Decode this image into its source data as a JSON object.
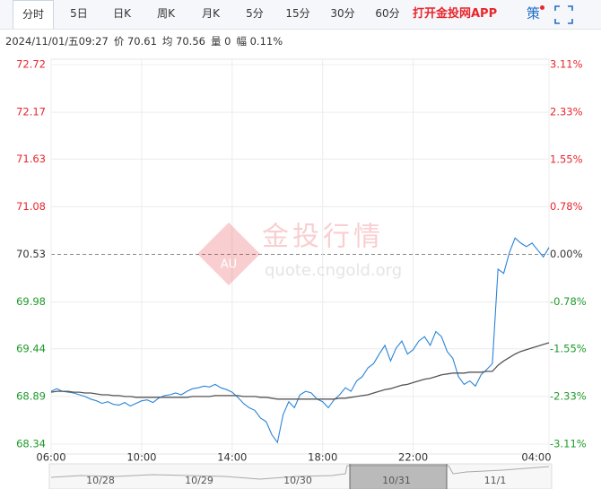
{
  "toolbar": {
    "tabs": [
      "分时",
      "5日",
      "日K",
      "周K",
      "月K",
      "5分",
      "15分",
      "30分",
      "60分"
    ],
    "app_link": "打开金投网APP",
    "strategy": "策"
  },
  "info": {
    "datetime": "2024/11/01/五09:27",
    "price": "价 70.61",
    "average": "均 70.56",
    "volume": "量 0",
    "change": "幅 0.11%"
  },
  "watermark": {
    "title": "金投行情",
    "site": "quote.cngold.org",
    "badge": "AU"
  },
  "navigator": {
    "dates": [
      "10/28",
      "10/29",
      "10/30",
      "10/31",
      "11/1"
    ]
  },
  "chart_data": {
    "type": "line",
    "categories": [
      "06:00",
      "06:15",
      "06:30",
      "06:45",
      "07:00",
      "07:15",
      "07:30",
      "07:45",
      "08:00",
      "08:15",
      "08:30",
      "08:45",
      "09:00",
      "09:15",
      "09:30",
      "09:45",
      "10:00",
      "10:15",
      "10:30",
      "10:45",
      "11:00",
      "11:15",
      "11:30",
      "11:45",
      "12:00",
      "12:15",
      "12:30",
      "12:45",
      "13:00",
      "13:15",
      "13:30",
      "13:45",
      "14:00",
      "14:15",
      "14:30",
      "14:45",
      "15:00",
      "15:15",
      "15:30",
      "15:45",
      "16:00",
      "16:15",
      "16:30",
      "16:45",
      "17:00",
      "17:15",
      "17:30",
      "17:45",
      "18:00",
      "18:15",
      "18:30",
      "18:45",
      "19:00",
      "19:15",
      "19:30",
      "19:45",
      "20:00",
      "20:15",
      "20:30",
      "20:45",
      "21:00",
      "21:15",
      "21:30",
      "21:45",
      "22:00",
      "22:15",
      "22:30",
      "22:45",
      "23:00",
      "23:15",
      "23:30",
      "23:45",
      "00:00",
      "00:15",
      "00:30",
      "00:45",
      "01:00",
      "01:15",
      "01:30",
      "01:45",
      "02:00",
      "02:15",
      "02:30",
      "02:45",
      "03:00",
      "03:15",
      "03:30",
      "03:45",
      "04:00"
    ],
    "series": [
      {
        "color": "#2a84d8",
        "values": [
          68.95,
          68.98,
          68.95,
          68.94,
          68.93,
          68.91,
          68.89,
          68.86,
          68.84,
          68.81,
          68.83,
          68.8,
          68.79,
          68.82,
          68.78,
          68.81,
          68.84,
          68.85,
          68.82,
          68.87,
          68.9,
          68.91,
          68.93,
          68.91,
          68.95,
          68.98,
          68.99,
          69.01,
          69.0,
          69.03,
          68.99,
          68.97,
          68.94,
          68.88,
          68.81,
          68.76,
          68.73,
          68.64,
          68.6,
          68.45,
          68.36,
          68.68,
          68.83,
          68.76,
          68.91,
          68.95,
          68.93,
          68.86,
          68.83,
          68.76,
          68.85,
          68.91,
          68.99,
          68.95,
          69.07,
          69.12,
          69.22,
          69.27,
          69.38,
          69.48,
          69.3,
          69.45,
          69.53,
          69.38,
          69.43,
          69.53,
          69.58,
          69.48,
          69.64,
          69.58,
          69.41,
          69.33,
          69.12,
          69.03,
          69.07,
          69.01,
          69.14,
          69.2,
          69.27,
          70.36,
          70.31,
          70.55,
          70.72,
          70.66,
          70.62,
          70.66,
          70.58,
          70.5,
          70.61
        ]
      },
      {
        "color": "#555555",
        "values": [
          68.94,
          68.95,
          68.95,
          68.95,
          68.94,
          68.94,
          68.93,
          68.93,
          68.92,
          68.91,
          68.91,
          68.9,
          68.9,
          68.89,
          68.89,
          68.88,
          68.88,
          68.88,
          68.88,
          68.88,
          68.88,
          68.88,
          68.88,
          68.88,
          68.88,
          68.89,
          68.89,
          68.89,
          68.89,
          68.9,
          68.9,
          68.9,
          68.9,
          68.9,
          68.89,
          68.89,
          68.89,
          68.88,
          68.88,
          68.87,
          68.86,
          68.86,
          68.86,
          68.86,
          68.86,
          68.86,
          68.86,
          68.86,
          68.86,
          68.86,
          68.86,
          68.87,
          68.87,
          68.88,
          68.89,
          68.9,
          68.91,
          68.93,
          68.95,
          68.97,
          68.98,
          69.0,
          69.02,
          69.03,
          69.05,
          69.07,
          69.09,
          69.1,
          69.12,
          69.14,
          69.15,
          69.16,
          69.16,
          69.16,
          69.17,
          69.17,
          69.17,
          69.18,
          69.18,
          69.25,
          69.3,
          69.34,
          69.38,
          69.41,
          69.43,
          69.45,
          69.47,
          69.49,
          69.51
        ]
      }
    ],
    "ylim": [
      68.34,
      72.72
    ],
    "yticks": [
      68.34,
      68.89,
      69.44,
      69.98,
      70.53,
      71.08,
      71.63,
      72.17,
      72.72
    ],
    "y2lim": [
      -3.11,
      3.11
    ],
    "y2ticks": [
      {
        "value": -3.11,
        "label": "-3.11%"
      },
      {
        "value": -2.33,
        "label": "-2.33%"
      },
      {
        "value": -1.55,
        "label": "-1.55%"
      },
      {
        "value": -0.78,
        "label": "-0.78%"
      },
      {
        "value": 0,
        "label": "0.00%"
      },
      {
        "value": 0.78,
        "label": "0.78%"
      },
      {
        "value": 1.55,
        "label": "1.55%"
      },
      {
        "value": 2.33,
        "label": "2.33%"
      },
      {
        "value": 3.11,
        "label": "3.11%"
      }
    ],
    "xticks": [
      "06:00",
      "10:00",
      "14:00",
      "18:00",
      "22:00",
      "04:00"
    ],
    "reference": 70.53,
    "up_color": "#e8262c",
    "down_color": "#1e9a2a",
    "flat_color": "#333333",
    "grid": true
  }
}
